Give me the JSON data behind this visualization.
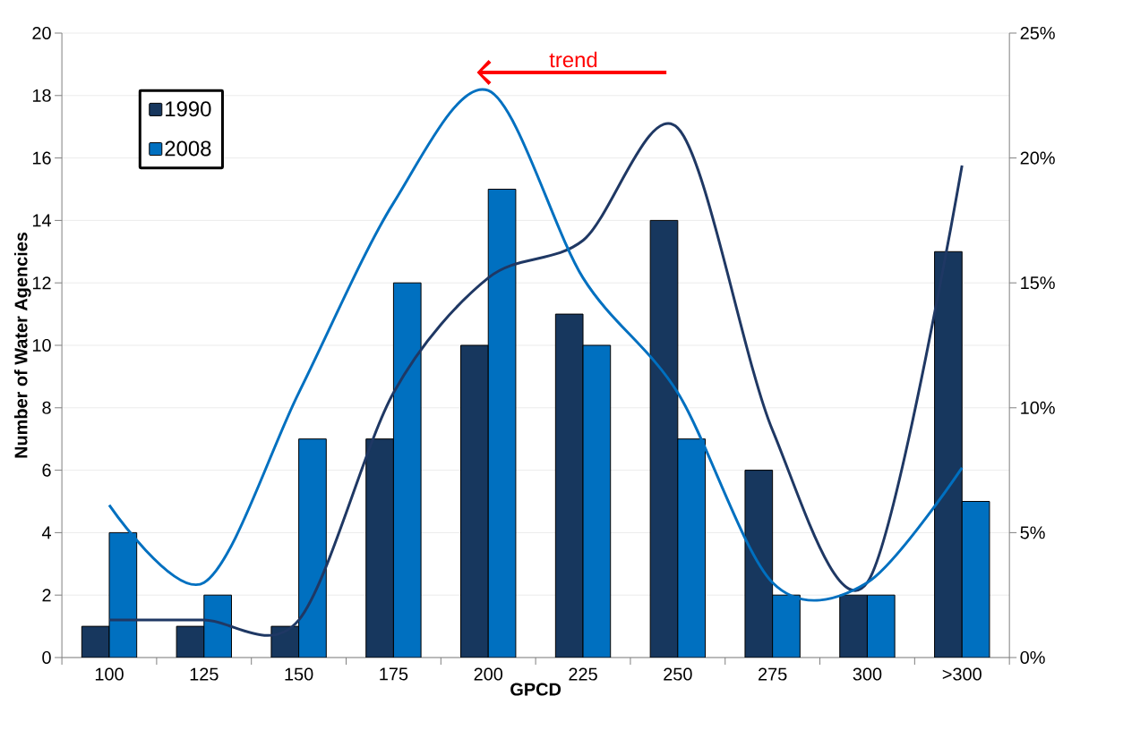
{
  "chart_data": {
    "type": "bar",
    "xlabel": "GPCD",
    "ylabel": "Number of Water Agencies",
    "categories": [
      "100",
      "125",
      "150",
      "175",
      "200",
      "225",
      "250",
      "275",
      "300",
      ">300"
    ],
    "series": [
      {
        "name": "1990",
        "color": "#17375e",
        "values": [
          1,
          1,
          1,
          7,
          10,
          11,
          14,
          6,
          2,
          13
        ]
      },
      {
        "name": "2008",
        "color": "#0070c0",
        "values": [
          4,
          2,
          7,
          12,
          15,
          10,
          7,
          2,
          2,
          5
        ]
      },
      {
        "type": "line",
        "axis": "y2",
        "color": "#1f3864",
        "values": [
          1.5,
          1.5,
          1.5,
          10.6,
          15.2,
          16.7,
          21.2,
          9.1,
          3.0,
          19.7
        ]
      },
      {
        "type": "line",
        "axis": "y2",
        "color": "#0070c0",
        "values": [
          6.1,
          3.0,
          10.6,
          18.2,
          22.7,
          15.2,
          10.6,
          3.0,
          3.0,
          7.6
        ]
      }
    ],
    "ylim": [
      0,
      20
    ],
    "yticks": [
      0,
      2,
      4,
      6,
      8,
      10,
      12,
      14,
      16,
      18,
      20
    ],
    "y2lim": [
      0,
      25
    ],
    "y2ticks": [
      {
        "value": 0,
        "label": "0%"
      },
      {
        "value": 5,
        "label": "5%"
      },
      {
        "value": 10,
        "label": "10%"
      },
      {
        "value": 15,
        "label": "15%"
      },
      {
        "value": 20,
        "label": "20%"
      },
      {
        "value": 25,
        "label": "25%"
      }
    ],
    "annotations": [
      "trend"
    ],
    "grid": "y",
    "legend": "top left"
  }
}
